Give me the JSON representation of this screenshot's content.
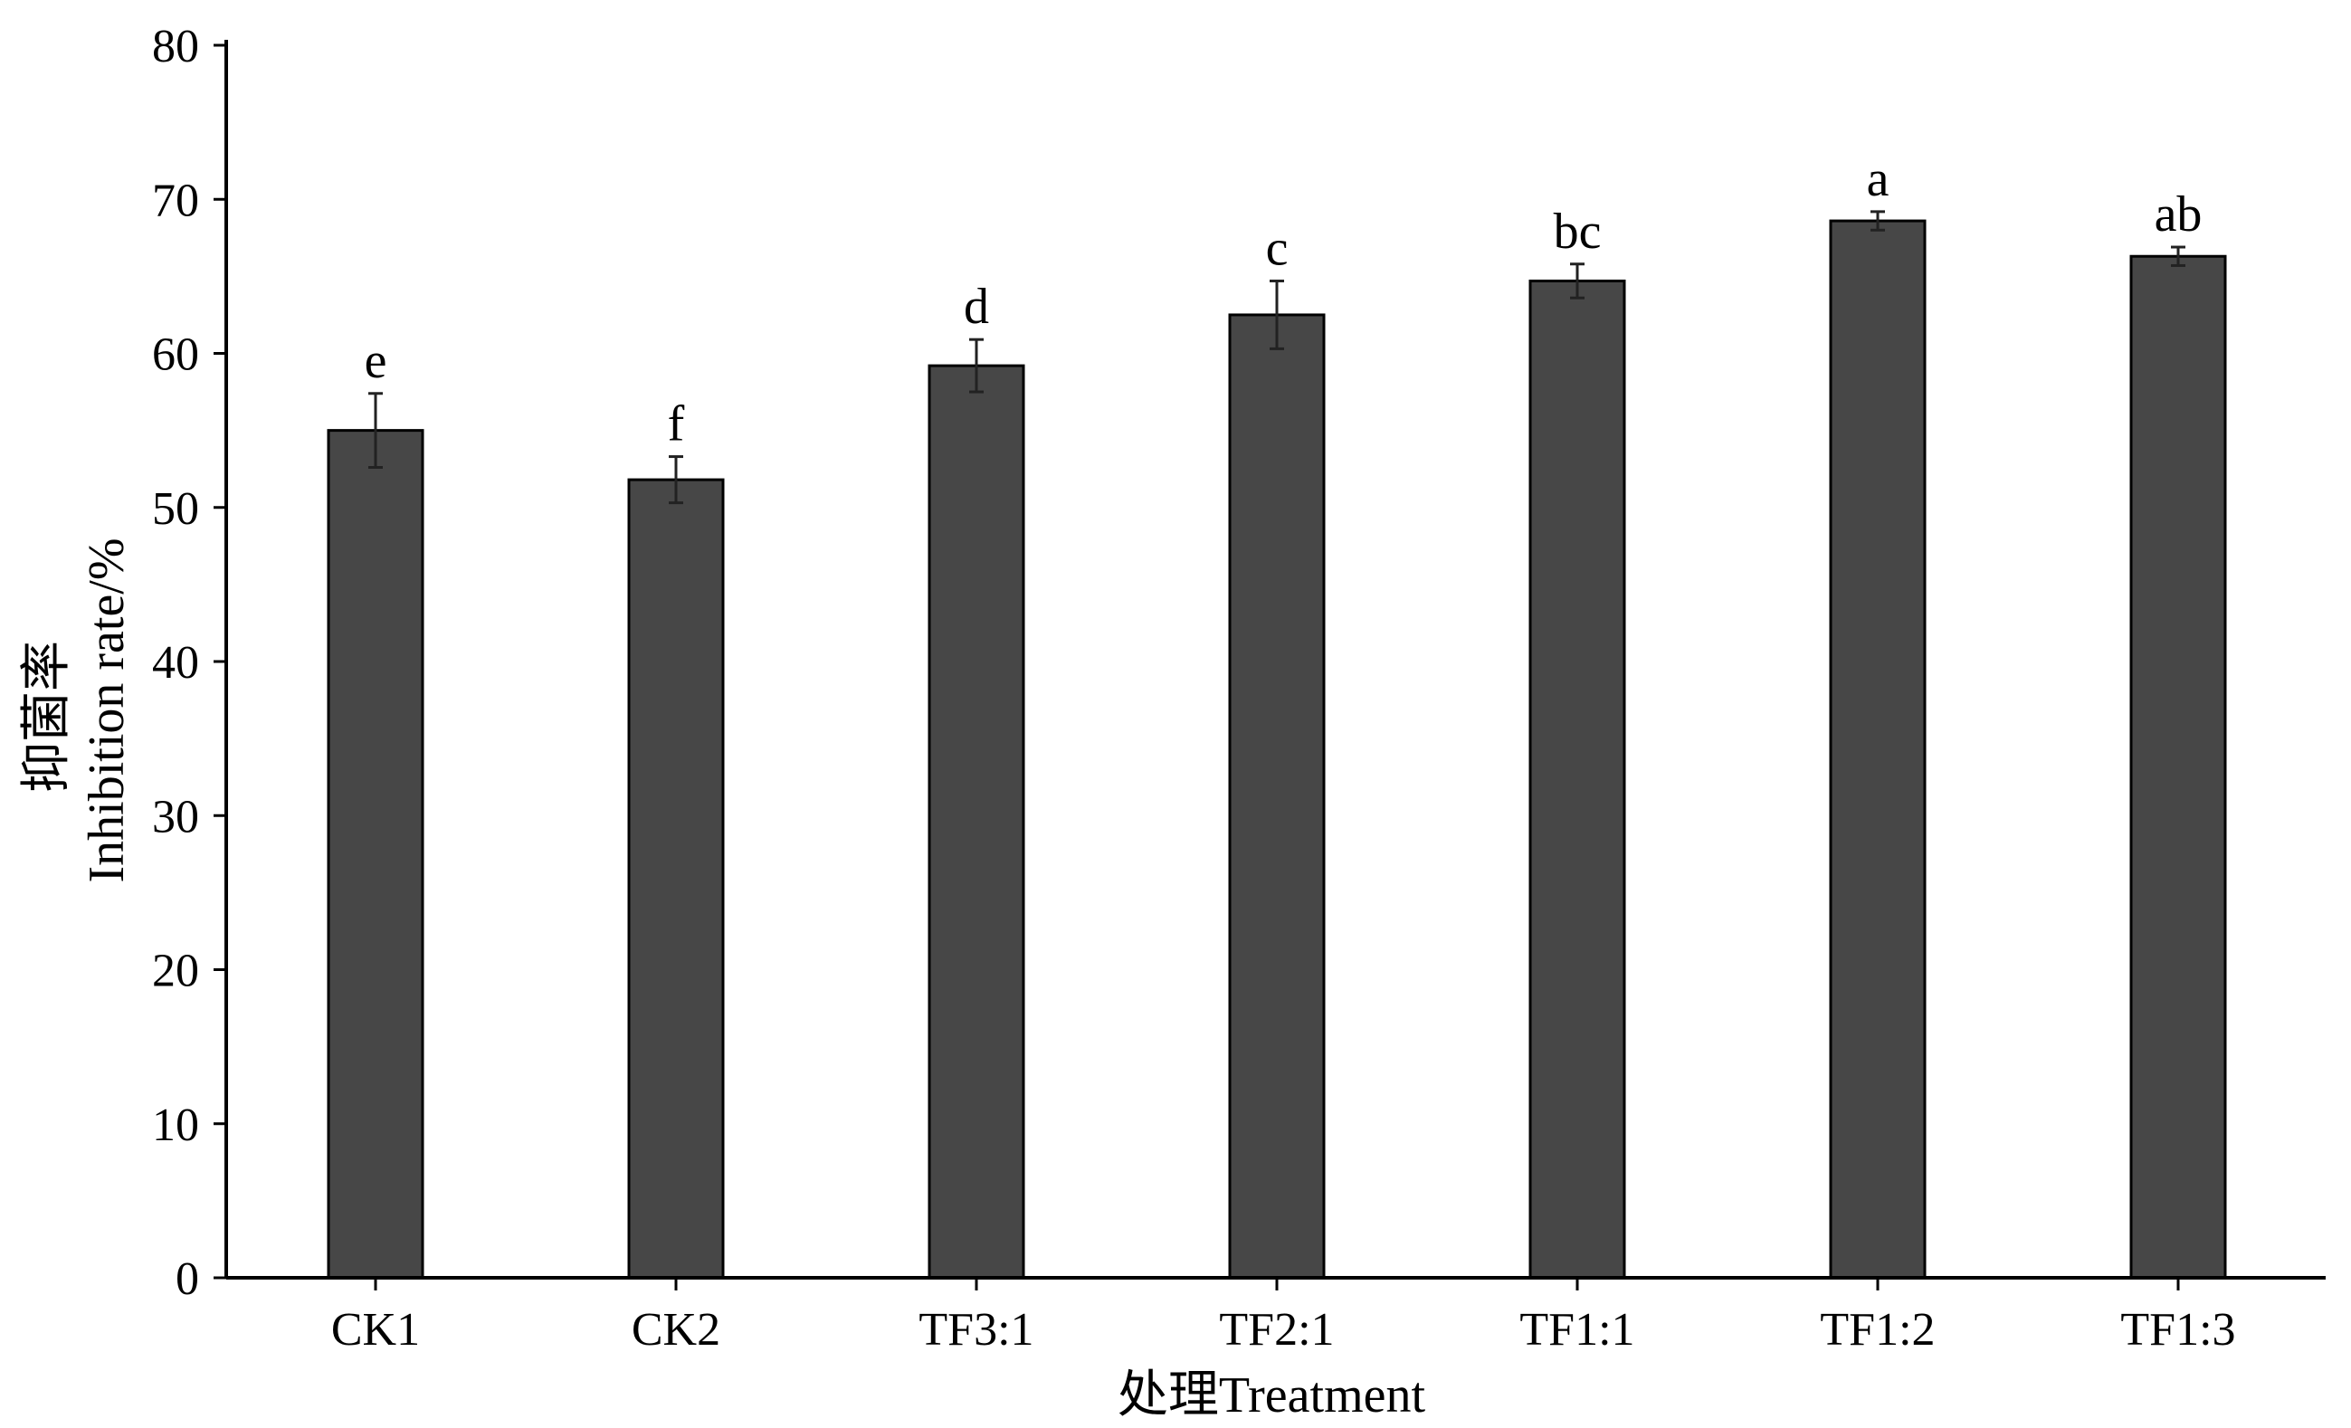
{
  "chart_data": {
    "type": "bar",
    "title": "",
    "xlabel": "处理Treatment",
    "ylabel_cn": "抑菌率",
    "ylabel_en": "Inhibition rate/%",
    "categories": [
      "CK1",
      "CK2",
      "TF3:1",
      "TF2:1",
      "TF1:1",
      "TF1:2",
      "TF1:3"
    ],
    "series": [
      {
        "values": [
          55.0,
          51.8,
          59.2,
          62.5,
          64.7,
          68.6,
          66.3
        ],
        "error": [
          2.4,
          1.5,
          1.7,
          2.2,
          1.1,
          0.6,
          0.6
        ]
      }
    ],
    "significance_labels": [
      "e",
      "f",
      "d",
      "c",
      "bc",
      "a",
      "ab"
    ],
    "ylim": [
      0,
      80
    ],
    "yticks": [
      "0",
      "10",
      "20",
      "30",
      "40",
      "50",
      "60",
      "70",
      "80"
    ],
    "grid": false,
    "legend": "none",
    "bar_color": "#474747",
    "bar_edge_color": "#000000",
    "axis_color": "#000000"
  }
}
